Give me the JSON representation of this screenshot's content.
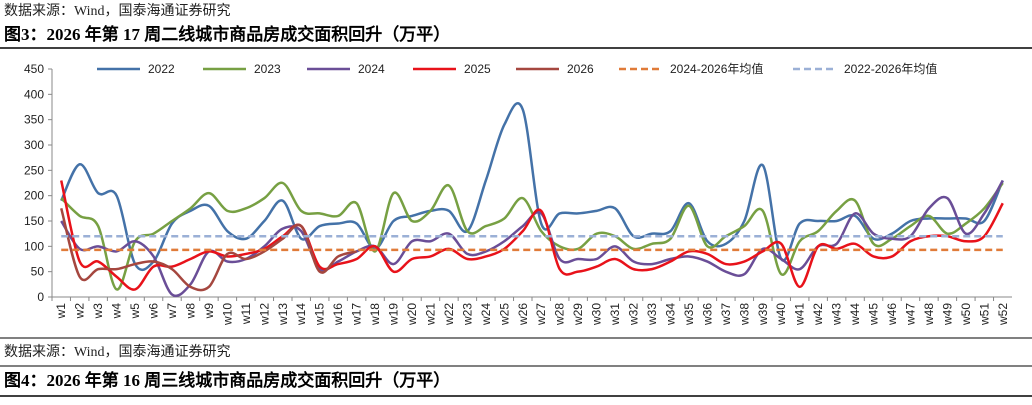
{
  "chart_data": {
    "type": "line",
    "source": "数据来源：Wind，国泰海通证券研究",
    "title": "图3：2026 年第 17 周二线城市商品房成交面积回升（万平）",
    "categories": [
      "w1",
      "w2",
      "w3",
      "w4",
      "w5",
      "w6",
      "w7",
      "w8",
      "w9",
      "w10",
      "w11",
      "w12",
      "w13",
      "w14",
      "w15",
      "w16",
      "w17",
      "w18",
      "w19",
      "w20",
      "w21",
      "w22",
      "w23",
      "w24",
      "w25",
      "w26",
      "w27",
      "w28",
      "w29",
      "w30",
      "w31",
      "w32",
      "w33",
      "w34",
      "w35",
      "w36",
      "w37",
      "w38",
      "w39",
      "w40",
      "w41",
      "w42",
      "w43",
      "w44",
      "w45",
      "w46",
      "w47",
      "w48",
      "w49",
      "w50",
      "w51",
      "w52"
    ],
    "series": [
      {
        "name": "2022",
        "color": "#4472a8",
        "values": [
          190,
          262,
          205,
          200,
          65,
          70,
          145,
          170,
          180,
          130,
          115,
          150,
          190,
          115,
          140,
          145,
          145,
          95,
          150,
          160,
          170,
          170,
          130,
          230,
          340,
          370,
          145,
          165,
          165,
          170,
          175,
          120,
          125,
          130,
          185,
          110,
          105,
          150,
          260,
          75,
          145,
          150,
          150,
          160,
          115,
          125,
          150,
          155,
          155,
          155,
          150,
          230
        ]
      },
      {
        "name": "2023",
        "color": "#77a043",
        "values": [
          195,
          160,
          140,
          15,
          110,
          125,
          150,
          175,
          205,
          170,
          175,
          195,
          225,
          170,
          165,
          160,
          185,
          90,
          205,
          150,
          170,
          220,
          130,
          140,
          155,
          195,
          130,
          100,
          95,
          125,
          120,
          95,
          105,
          115,
          180,
          100,
          120,
          140,
          170,
          45,
          110,
          130,
          170,
          190,
          105,
          115,
          140,
          160,
          125,
          145,
          175,
          225
        ]
      },
      {
        "name": "2024",
        "color": "#6a4e97",
        "values": [
          150,
          95,
          100,
          90,
          110,
          80,
          5,
          25,
          90,
          70,
          75,
          100,
          135,
          130,
          55,
          70,
          90,
          100,
          65,
          110,
          110,
          125,
          85,
          90,
          110,
          140,
          165,
          75,
          75,
          75,
          100,
          70,
          65,
          75,
          80,
          70,
          50,
          45,
          95,
          75,
          55,
          100,
          105,
          165,
          125,
          115,
          120,
          175,
          195,
          125,
          165,
          230
        ]
      },
      {
        "name": "2025",
        "color": "#e8121a",
        "values": [
          230,
          70,
          70,
          40,
          15,
          60,
          60,
          75,
          90,
          80,
          85,
          95,
          120,
          140,
          60,
          65,
          75,
          100,
          50,
          75,
          80,
          95,
          75,
          80,
          95,
          130,
          170,
          55,
          50,
          60,
          75,
          55,
          55,
          70,
          90,
          85,
          65,
          70,
          90,
          105,
          20,
          100,
          95,
          105,
          80,
          80,
          110,
          120,
          120,
          110,
          120,
          185
        ]
      },
      {
        "name": "2026",
        "color": "#a5473f",
        "values": [
          175,
          40,
          55,
          55,
          65,
          70,
          55,
          20,
          20,
          85,
          75,
          90,
          115,
          140,
          50,
          80,
          90,
          null,
          null,
          null,
          null,
          null,
          null,
          null,
          null,
          null,
          null,
          null,
          null,
          null,
          null,
          null,
          null,
          null,
          null,
          null,
          null,
          null,
          null,
          null,
          null,
          null,
          null,
          null,
          null,
          null,
          null,
          null,
          null,
          null,
          null,
          null
        ]
      }
    ],
    "averages": [
      {
        "name": "2024-2026年均值",
        "color": "#e07b39",
        "value": 93
      },
      {
        "name": "2022-2026年均值",
        "color": "#9bb0d6",
        "value": 120
      }
    ],
    "ylim": [
      0,
      450
    ],
    "yticks": [
      0,
      50,
      100,
      150,
      200,
      250,
      300,
      350,
      400,
      450
    ],
    "grid": false,
    "legend": "top"
  },
  "next_figure": {
    "source": "数据来源：Wind，国泰海通证券研究",
    "title": "图4：2026 年第 16 周三线城市商品房成交面积回升（万平）"
  }
}
